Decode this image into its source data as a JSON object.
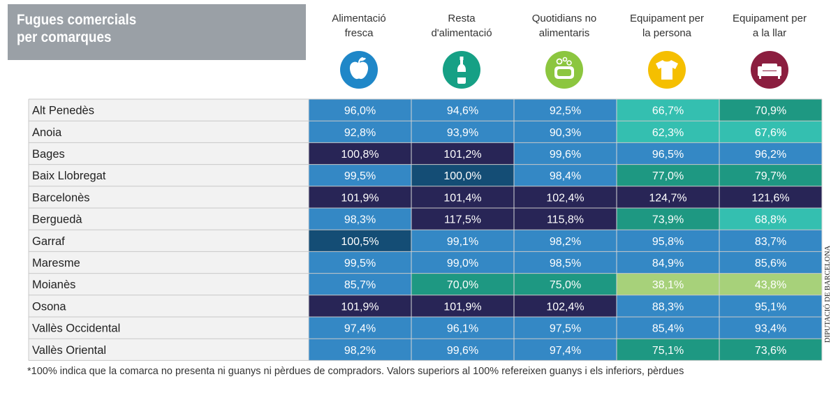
{
  "title": [
    "Fugues comercials",
    "per comarques"
  ],
  "footnote": "*100% indica que la comarca no presenta ni guanys ni pèrdues de compradors. Valors superiors al 100% refereixen guanys i els inferiors, pèrdues",
  "credit": "DIPUTACIÓ DE BARCELONA",
  "columns": [
    {
      "lines": [
        "Alimentació",
        "fresca"
      ],
      "icon": "apple-icon",
      "color": "#1f87c8"
    },
    {
      "lines": [
        "Resta",
        "d'alimentació"
      ],
      "icon": "bottle-icon",
      "color": "#16a085"
    },
    {
      "lines": [
        "Quotidians no",
        "alimentaris"
      ],
      "icon": "soap-icon",
      "color": "#8cc63f"
    },
    {
      "lines": [
        "Equipament per",
        "la persona"
      ],
      "icon": "tshirt-icon",
      "color": "#f5bf00"
    },
    {
      "lines": [
        "Equipament per",
        "a la llar"
      ],
      "icon": "sofa-icon",
      "color": "#8b1e3f"
    }
  ],
  "cell_colors": {
    "mid_blue": "#3488c5",
    "dark_navy": "#282556",
    "dark_teal": "#144d75",
    "green_teal": "#1e9882",
    "light_teal": "#34bfb0",
    "light_green": "#a7d17a"
  },
  "chart_data": {
    "type": "table",
    "categories": [
      "Alt Penedès",
      "Anoia",
      "Bages",
      "Baix Llobregat",
      "Barcelonès",
      "Berguedà",
      "Garraf",
      "Maresme",
      "Moianès",
      "Osona",
      "Vallès Occidental",
      "Vallès Oriental"
    ],
    "series": [
      {
        "name": "Alimentació fresca",
        "values": [
          "96,0%",
          "92,8%",
          "100,8%",
          "99,5%",
          "101,9%",
          "98,3%",
          "100,5%",
          "99,5%",
          "85,7%",
          "101,9%",
          "97,4%",
          "98,2%"
        ]
      },
      {
        "name": "Resta d'alimentació",
        "values": [
          "94,6%",
          "93,9%",
          "101,2%",
          "100,0%",
          "101,4%",
          "117,5%",
          "99,1%",
          "99,0%",
          "70,0%",
          "101,9%",
          "96,1%",
          "99,6%"
        ]
      },
      {
        "name": "Quotidians no alimentaris",
        "values": [
          "92,5%",
          "90,3%",
          "99,6%",
          "98,4%",
          "102,4%",
          "115,8%",
          "98,2%",
          "98,5%",
          "75,0%",
          "102,4%",
          "97,5%",
          "97,4%"
        ]
      },
      {
        "name": "Equipament per la persona",
        "values": [
          "66,7%",
          "62,3%",
          "96,5%",
          "77,0%",
          "124,7%",
          "73,9%",
          "95,8%",
          "84,9%",
          "38,1%",
          "88,3%",
          "85,4%",
          "75,1%"
        ]
      },
      {
        "name": "Equipament per a la llar",
        "values": [
          "70,9%",
          "67,6%",
          "96,2%",
          "79,7%",
          "121,6%",
          "68,8%",
          "83,7%",
          "85,6%",
          "43,8%",
          "95,1%",
          "93,4%",
          "73,6%"
        ]
      }
    ],
    "cell_classes": [
      [
        "mid_blue",
        "mid_blue",
        "mid_blue",
        "light_teal",
        "green_teal"
      ],
      [
        "mid_blue",
        "mid_blue",
        "mid_blue",
        "light_teal",
        "light_teal"
      ],
      [
        "dark_navy",
        "dark_navy",
        "mid_blue",
        "mid_blue",
        "mid_blue"
      ],
      [
        "mid_blue",
        "dark_teal",
        "mid_blue",
        "green_teal",
        "green_teal"
      ],
      [
        "dark_navy",
        "dark_navy",
        "dark_navy",
        "dark_navy",
        "dark_navy"
      ],
      [
        "mid_blue",
        "dark_navy",
        "dark_navy",
        "green_teal",
        "light_teal"
      ],
      [
        "dark_teal",
        "mid_blue",
        "mid_blue",
        "mid_blue",
        "mid_blue"
      ],
      [
        "mid_blue",
        "mid_blue",
        "mid_blue",
        "mid_blue",
        "mid_blue"
      ],
      [
        "mid_blue",
        "green_teal",
        "green_teal",
        "light_green",
        "light_green"
      ],
      [
        "dark_navy",
        "dark_navy",
        "dark_navy",
        "mid_blue",
        "mid_blue"
      ],
      [
        "mid_blue",
        "mid_blue",
        "mid_blue",
        "mid_blue",
        "mid_blue"
      ],
      [
        "mid_blue",
        "mid_blue",
        "mid_blue",
        "green_teal",
        "green_teal"
      ]
    ]
  }
}
